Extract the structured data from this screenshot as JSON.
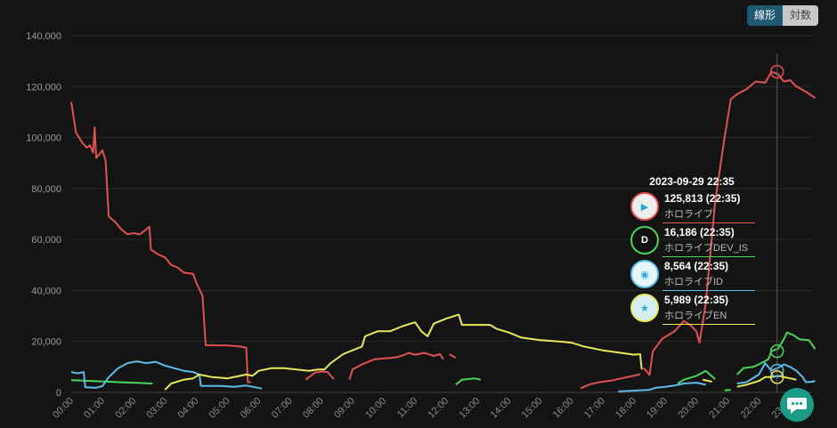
{
  "toggle": {
    "linear": "線形",
    "log": "対数"
  },
  "chart_data": {
    "type": "line",
    "ylim": [
      0,
      140000
    ],
    "yticks": [
      "0",
      "20,000",
      "40,000",
      "60,000",
      "80,000",
      "100,000",
      "120,000",
      "140,000"
    ],
    "xticks": [
      "00:00",
      "01:00",
      "02:00",
      "03:00",
      "04:00",
      "05:00",
      "06:00",
      "07:00",
      "08:00",
      "09:00",
      "10:00",
      "11:00",
      "12:00",
      "13:00",
      "14:00",
      "15:00",
      "16:00",
      "17:00",
      "18:00",
      "19:00",
      "20:00",
      "21:00",
      "22:00",
      "23:00"
    ],
    "grid": true,
    "series": [
      {
        "name": "ホロライブ",
        "color": "#e05252",
        "segments": [
          [
            [
              0.0,
              114000
            ],
            [
              0.15,
              102000
            ],
            [
              0.35,
              98000
            ],
            [
              0.5,
              96000
            ],
            [
              0.6,
              97000
            ],
            [
              0.7,
              94000
            ],
            [
              0.75,
              104000
            ],
            [
              0.8,
              92000
            ],
            [
              1.0,
              95000
            ],
            [
              1.1,
              91000
            ],
            [
              1.2,
              69000
            ],
            [
              1.4,
              67000
            ],
            [
              1.6,
              64000
            ],
            [
              1.8,
              62000
            ],
            [
              2.0,
              62500
            ],
            [
              2.2,
              62000
            ],
            [
              2.4,
              64000
            ],
            [
              2.5,
              65000
            ],
            [
              2.55,
              56000
            ],
            [
              2.8,
              54000
            ],
            [
              3.0,
              53000
            ],
            [
              3.2,
              50000
            ],
            [
              3.4,
              49000
            ],
            [
              3.6,
              47000
            ],
            [
              3.9,
              46500
            ],
            [
              4.0,
              43000
            ],
            [
              4.2,
              38000
            ],
            [
              4.3,
              18500
            ],
            [
              5.0,
              18400
            ],
            [
              5.4,
              18000
            ],
            [
              5.6,
              17500
            ],
            [
              5.65,
              4000
            ],
            [
              5.75,
              4000
            ]
          ],
          [
            [
              7.5,
              5000
            ],
            [
              7.8,
              7800
            ],
            [
              8.0,
              8200
            ],
            [
              8.2,
              8000
            ],
            [
              8.4,
              5200
            ]
          ],
          [
            [
              8.9,
              5000
            ],
            [
              9.0,
              9000
            ],
            [
              9.3,
              11000
            ],
            [
              9.7,
              13000
            ],
            [
              10.2,
              13500
            ],
            [
              10.4,
              13800
            ],
            [
              10.6,
              14500
            ],
            [
              10.8,
              15500
            ],
            [
              11.0,
              14800
            ],
            [
              11.3,
              15500
            ],
            [
              11.6,
              14300
            ],
            [
              11.8,
              15000
            ],
            [
              11.9,
              13000
            ]
          ],
          [
            [
              12.1,
              15000
            ],
            [
              12.3,
              13500
            ]
          ],
          [
            [
              16.3,
              1600
            ],
            [
              16.6,
              3200
            ],
            [
              16.9,
              4000
            ],
            [
              17.3,
              4700
            ],
            [
              17.6,
              5500
            ],
            [
              18.1,
              6800
            ],
            [
              18.2,
              7200
            ]
          ],
          [
            [
              18.3,
              9500
            ],
            [
              18.4,
              8500
            ],
            [
              18.5,
              6800
            ],
            [
              18.6,
              16000
            ],
            [
              18.9,
              21000
            ],
            [
              19.3,
              24000
            ],
            [
              19.6,
              28000
            ],
            [
              19.8,
              26500
            ],
            [
              20.0,
              24000
            ],
            [
              20.1,
              19500
            ],
            [
              20.3,
              35000
            ],
            [
              20.6,
              75000
            ],
            [
              20.9,
              100000
            ],
            [
              21.1,
              115000
            ],
            [
              21.3,
              117000
            ],
            [
              21.6,
              119000
            ],
            [
              21.9,
              122000
            ],
            [
              22.2,
              121500
            ],
            [
              22.4,
              125813
            ],
            [
              22.6,
              125000
            ],
            [
              22.8,
              122000
            ],
            [
              23.0,
              122500
            ],
            [
              23.2,
              120000
            ],
            [
              23.5,
              118000
            ],
            [
              23.8,
              115500
            ]
          ]
        ]
      },
      {
        "name": "ホロライブDEV_IS",
        "color": "#4ad45a",
        "segments": [
          [
            [
              0.0,
              4800
            ],
            [
              0.6,
              4500
            ],
            [
              1.2,
              4200
            ],
            [
              2.0,
              3800
            ],
            [
              2.6,
              3500
            ]
          ],
          [
            [
              12.3,
              3000
            ],
            [
              12.5,
              5000
            ],
            [
              12.9,
              5500
            ],
            [
              13.1,
              5000
            ]
          ],
          [
            [
              19.4,
              3500
            ],
            [
              19.6,
              5000
            ],
            [
              20.0,
              6500
            ],
            [
              20.3,
              8500
            ],
            [
              20.6,
              5200
            ]
          ],
          [
            [
              20.9,
              800
            ],
            [
              21.1,
              1000
            ]
          ],
          [
            [
              21.3,
              7000
            ],
            [
              21.5,
              9500
            ],
            [
              21.8,
              10000
            ],
            [
              22.0,
              11000
            ],
            [
              22.3,
              13000
            ],
            [
              22.4,
              16186
            ],
            [
              22.6,
              17000
            ],
            [
              22.8,
              21000
            ],
            [
              22.9,
              23500
            ],
            [
              23.1,
              22500
            ],
            [
              23.3,
              20800
            ],
            [
              23.6,
              20500
            ],
            [
              23.8,
              17000
            ]
          ]
        ]
      },
      {
        "name": "ホロライブID",
        "color": "#5bbde8",
        "segments": [
          [
            [
              0.0,
              8000
            ],
            [
              0.2,
              7500
            ],
            [
              0.4,
              8000
            ],
            [
              0.45,
              2000
            ],
            [
              0.8,
              1800
            ],
            [
              1.0,
              2500
            ],
            [
              1.2,
              6000
            ],
            [
              1.5,
              9500
            ],
            [
              1.8,
              11500
            ],
            [
              2.1,
              12200
            ],
            [
              2.4,
              11500
            ],
            [
              2.7,
              12000
            ],
            [
              3.0,
              10500
            ],
            [
              3.3,
              9500
            ],
            [
              3.6,
              8500
            ],
            [
              3.9,
              8000
            ],
            [
              4.1,
              7000
            ],
            [
              4.15,
              2500
            ],
            [
              4.4,
              2500
            ],
            [
              4.8,
              2500
            ],
            [
              5.2,
              2200
            ],
            [
              5.6,
              2700
            ],
            [
              5.9,
              2000
            ],
            [
              6.1,
              1500
            ]
          ],
          [
            [
              17.5,
              400
            ],
            [
              18.0,
              700
            ],
            [
              18.5,
              1000
            ],
            [
              18.7,
              1800
            ],
            [
              19.0,
              2200
            ],
            [
              19.3,
              2700
            ],
            [
              19.6,
              3500
            ],
            [
              20.0,
              3800
            ],
            [
              20.3,
              3000
            ]
          ],
          [
            [
              21.3,
              3500
            ],
            [
              21.6,
              4000
            ],
            [
              22.0,
              7000
            ],
            [
              22.2,
              11500
            ],
            [
              22.4,
              8564
            ],
            [
              22.6,
              9500
            ],
            [
              22.8,
              11000
            ],
            [
              23.0,
              10000
            ],
            [
              23.2,
              8500
            ],
            [
              23.4,
              6000
            ],
            [
              23.5,
              4000
            ],
            [
              23.7,
              4200
            ],
            [
              23.8,
              4500
            ]
          ]
        ]
      },
      {
        "name": "ホロライブEN",
        "color": "#e8e85a",
        "segments": [
          [
            [
              3.0,
              1000
            ],
            [
              3.2,
              3500
            ],
            [
              3.6,
              5000
            ],
            [
              3.9,
              5500
            ],
            [
              4.1,
              7000
            ],
            [
              4.5,
              6000
            ],
            [
              5.0,
              5500
            ],
            [
              5.4,
              6500
            ],
            [
              5.6,
              7000
            ],
            [
              5.8,
              6500
            ],
            [
              6.0,
              8500
            ],
            [
              6.4,
              9500
            ],
            [
              6.8,
              9500
            ],
            [
              7.2,
              9000
            ],
            [
              7.6,
              8500
            ],
            [
              7.9,
              9000
            ],
            [
              8.1,
              9000
            ],
            [
              8.3,
              11500
            ],
            [
              8.7,
              15000
            ],
            [
              9.0,
              16500
            ],
            [
              9.3,
              18000
            ],
            [
              9.4,
              22000
            ],
            [
              9.8,
              24000
            ],
            [
              10.2,
              24000
            ],
            [
              10.6,
              26000
            ],
            [
              11.0,
              27500
            ],
            [
              11.2,
              24000
            ],
            [
              11.4,
              22000
            ],
            [
              11.6,
              27000
            ],
            [
              12.0,
              29000
            ],
            [
              12.4,
              30500
            ],
            [
              12.5,
              26500
            ],
            [
              13.0,
              26500
            ],
            [
              13.4,
              26500
            ],
            [
              13.6,
              25000
            ],
            [
              14.0,
              23500
            ],
            [
              14.4,
              21500
            ],
            [
              15.0,
              20500
            ],
            [
              15.6,
              20000
            ],
            [
              16.0,
              19500
            ],
            [
              16.4,
              18000
            ],
            [
              17.0,
              16500
            ],
            [
              17.6,
              15500
            ],
            [
              18.0,
              14800
            ],
            [
              18.2,
              15000
            ],
            [
              18.25,
              9000
            ]
          ],
          [
            [
              20.2,
              5000
            ],
            [
              20.5,
              4200
            ]
          ],
          [
            [
              21.3,
              2200
            ],
            [
              21.6,
              3000
            ],
            [
              22.0,
              4500
            ],
            [
              22.2,
              5989
            ],
            [
              22.4,
              5989
            ],
            [
              22.6,
              6500
            ],
            [
              22.8,
              6000
            ],
            [
              23.0,
              5500
            ],
            [
              23.2,
              5000
            ]
          ]
        ]
      }
    ],
    "hover": {
      "x": 22.58,
      "title": "2023-09-29 22:35"
    },
    "tooltip": [
      {
        "value": "125,813 (22:35)",
        "name": "ホロライブ",
        "color": "#e05252",
        "y": 125813,
        "icon": "play-icon"
      },
      {
        "value": "16,186 (22:35)",
        "name": "ホロライブDEV_IS",
        "color": "#4ad45a",
        "y": 16186,
        "icon": "devis-logo"
      },
      {
        "value": "8,564 (22:35)",
        "name": "ホロライブID",
        "color": "#5bbde8",
        "y": 8564,
        "icon": "id-logo"
      },
      {
        "value": "5,989 (22:35)",
        "name": "ホロライブEN",
        "color": "#e8e85a",
        "y": 5989,
        "icon": "en-logo"
      }
    ]
  }
}
